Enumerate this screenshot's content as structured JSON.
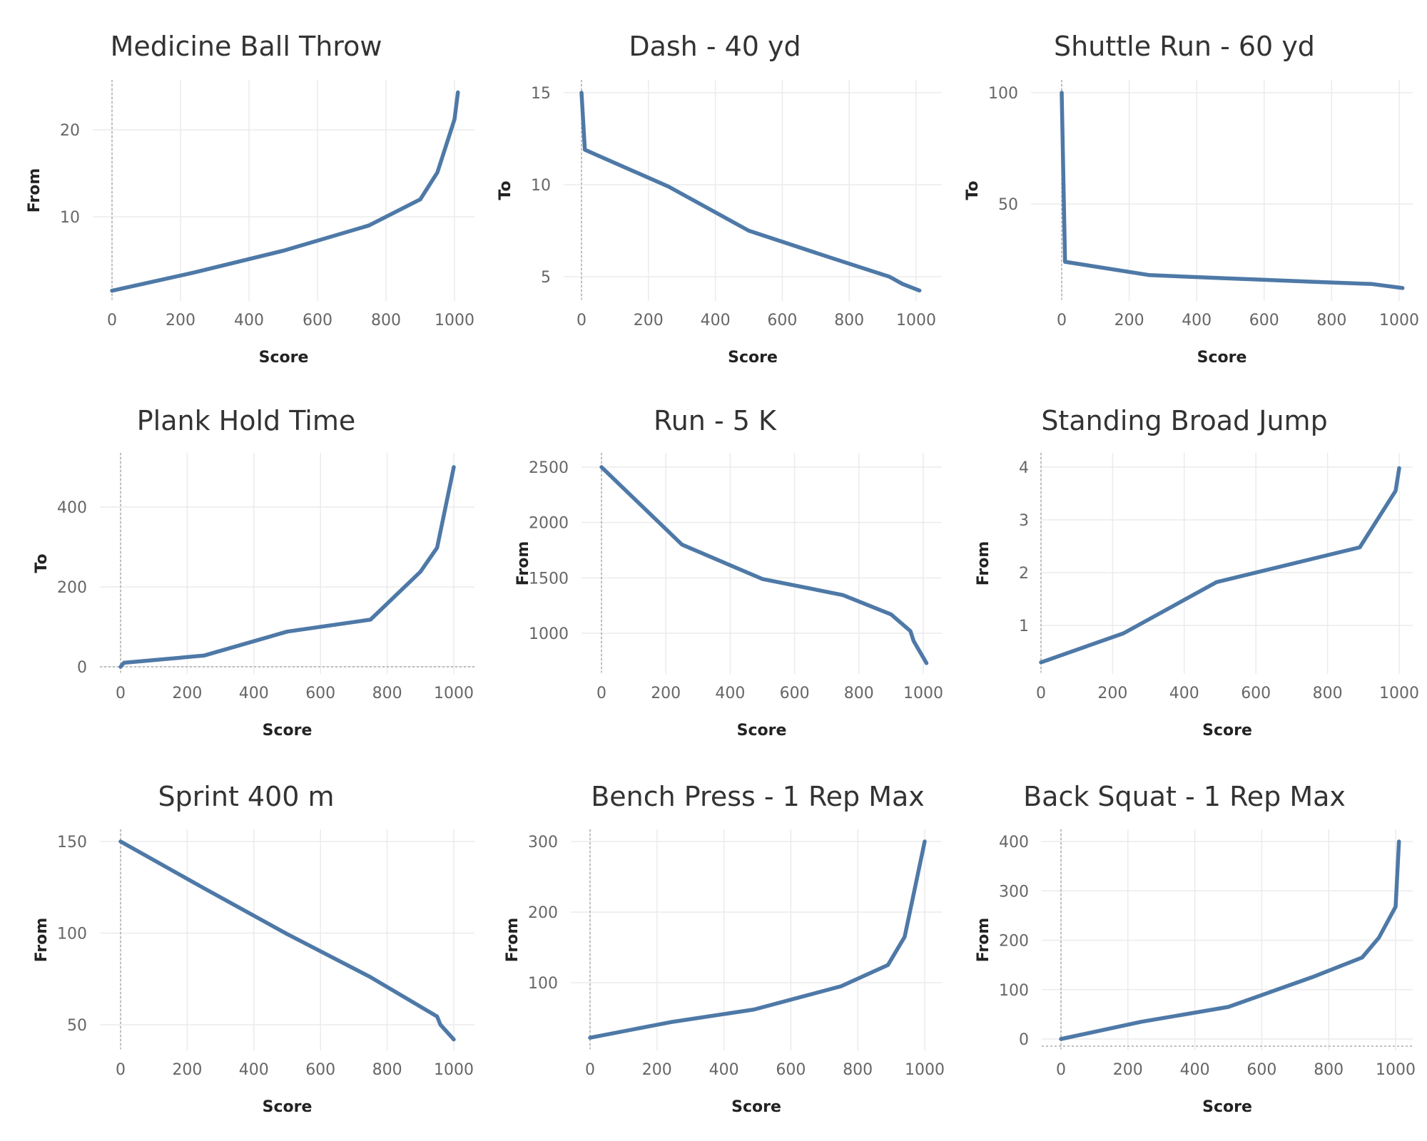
{
  "colors": {
    "series": "#4e79a7",
    "grid": "#ebebeb"
  },
  "chart_data": [
    {
      "type": "line",
      "title": "Medicine Ball Throw",
      "xlabel": "Score",
      "ylabel": "From",
      "xlim": [
        0,
        1000
      ],
      "ylim": [
        0,
        25
      ],
      "xticks": [
        0,
        200,
        400,
        600,
        800,
        1000
      ],
      "yticks": [
        10,
        20
      ],
      "grid": true,
      "x_zero_line": true,
      "y_zero_line": false,
      "x": [
        0,
        240,
        500,
        750,
        900,
        950,
        1000,
        1010
      ],
      "y": [
        1.5,
        3.6,
        6.1,
        9.0,
        12.0,
        15.1,
        21.2,
        24.3
      ]
    },
    {
      "type": "line",
      "title": "Dash - 40 yd",
      "xlabel": "Score",
      "ylabel": "To",
      "xlim": [
        0,
        1000
      ],
      "ylim": [
        4.2,
        15.5
      ],
      "xticks": [
        0,
        200,
        400,
        600,
        800,
        1000
      ],
      "yticks": [
        5,
        10,
        15
      ],
      "grid": true,
      "x_zero_line": true,
      "y_zero_line": false,
      "x": [
        0,
        10,
        260,
        500,
        750,
        920,
        960,
        1010
      ],
      "y": [
        15.0,
        11.9,
        9.9,
        7.5,
        6.0,
        5.0,
        4.6,
        4.25
      ]
    },
    {
      "type": "line",
      "title": "Shuttle Run - 60 yd",
      "xlabel": "Score",
      "ylabel": "To",
      "xlim": [
        0,
        1000
      ],
      "ylim": [
        0,
        100
      ],
      "xticks": [
        0,
        200,
        400,
        600,
        800,
        1000
      ],
      "yticks": [
        50,
        100
      ],
      "grid": true,
      "x_zero_line": true,
      "y_zero_line": false,
      "x": [
        0,
        10,
        260,
        500,
        750,
        920,
        960,
        1010
      ],
      "y": [
        100,
        24,
        18,
        16.5,
        15,
        14,
        13.2,
        12.2
      ]
    },
    {
      "type": "line",
      "title": "Plank Hold Time",
      "xlabel": "Score",
      "ylabel": "To",
      "xlim": [
        0,
        1000
      ],
      "ylim": [
        0,
        500
      ],
      "xticks": [
        0,
        200,
        400,
        600,
        800,
        1000
      ],
      "yticks": [
        0,
        200,
        400
      ],
      "grid": true,
      "x_zero_line": true,
      "y_zero_line": true,
      "x": [
        0,
        10,
        250,
        500,
        750,
        900,
        950,
        1000
      ],
      "y": [
        0,
        10,
        28,
        88,
        118,
        238,
        298,
        500
      ]
    },
    {
      "type": "line",
      "title": "Run - 5 K",
      "xlabel": "Score",
      "ylabel": "From",
      "xlim": [
        0,
        1000
      ],
      "ylim": [
        700,
        2500
      ],
      "xticks": [
        0,
        200,
        400,
        600,
        800,
        1000
      ],
      "yticks": [
        1000,
        1500,
        2000,
        2500
      ],
      "grid": true,
      "x_zero_line": true,
      "y_zero_line": false,
      "x": [
        0,
        250,
        500,
        750,
        900,
        960,
        970,
        1010
      ],
      "y": [
        2500,
        1800,
        1490,
        1345,
        1170,
        1020,
        930,
        730
      ]
    },
    {
      "type": "line",
      "title": "Standing Broad Jump",
      "xlabel": "Score",
      "ylabel": "From",
      "xlim": [
        0,
        1000
      ],
      "ylim": [
        0,
        4
      ],
      "xticks": [
        0,
        200,
        400,
        600,
        800,
        1000
      ],
      "yticks": [
        1,
        2,
        3,
        4
      ],
      "grid": true,
      "x_zero_line": true,
      "y_zero_line": false,
      "x": [
        0,
        230,
        490,
        890,
        990,
        1000
      ],
      "y": [
        0.3,
        0.85,
        1.82,
        2.48,
        3.55,
        3.98
      ]
    },
    {
      "type": "line",
      "title": "Sprint 400 m",
      "xlabel": "Score",
      "ylabel": "From",
      "xlim": [
        0,
        1000
      ],
      "ylim": [
        40,
        150
      ],
      "xticks": [
        0,
        200,
        400,
        600,
        800,
        1000
      ],
      "yticks": [
        50,
        100,
        150
      ],
      "grid": true,
      "x_zero_line": true,
      "y_zero_line": false,
      "x": [
        0,
        250,
        500,
        750,
        950,
        960,
        1000
      ],
      "y": [
        150,
        124.5,
        99.5,
        76,
        54.5,
        50,
        42
      ]
    },
    {
      "type": "line",
      "title": "Bench Press - 1 Rep Max",
      "xlabel": "Score",
      "ylabel": "From",
      "xlim": [
        0,
        1000
      ],
      "ylim": [
        0,
        300
      ],
      "xticks": [
        0,
        200,
        400,
        600,
        800,
        1000
      ],
      "yticks": [
        100,
        200,
        300
      ],
      "grid": true,
      "x_zero_line": true,
      "y_zero_line": false,
      "x": [
        0,
        240,
        490,
        750,
        890,
        940,
        1000
      ],
      "y": [
        22,
        44,
        62,
        95,
        125,
        165,
        300
      ]
    },
    {
      "type": "line",
      "title": "Back Squat - 1 Rep Max",
      "xlabel": "Score",
      "ylabel": "From",
      "xlim": [
        0,
        1000
      ],
      "ylim": [
        0,
        400
      ],
      "xticks": [
        0,
        200,
        400,
        600,
        800,
        1000
      ],
      "yticks": [
        0,
        100,
        200,
        300,
        400
      ],
      "grid": true,
      "x_zero_line": true,
      "y_zero_line": true,
      "x": [
        0,
        240,
        500,
        750,
        900,
        950,
        1000,
        1010
      ],
      "y": [
        0,
        35,
        65,
        125,
        165,
        205,
        268,
        400
      ]
    }
  ]
}
